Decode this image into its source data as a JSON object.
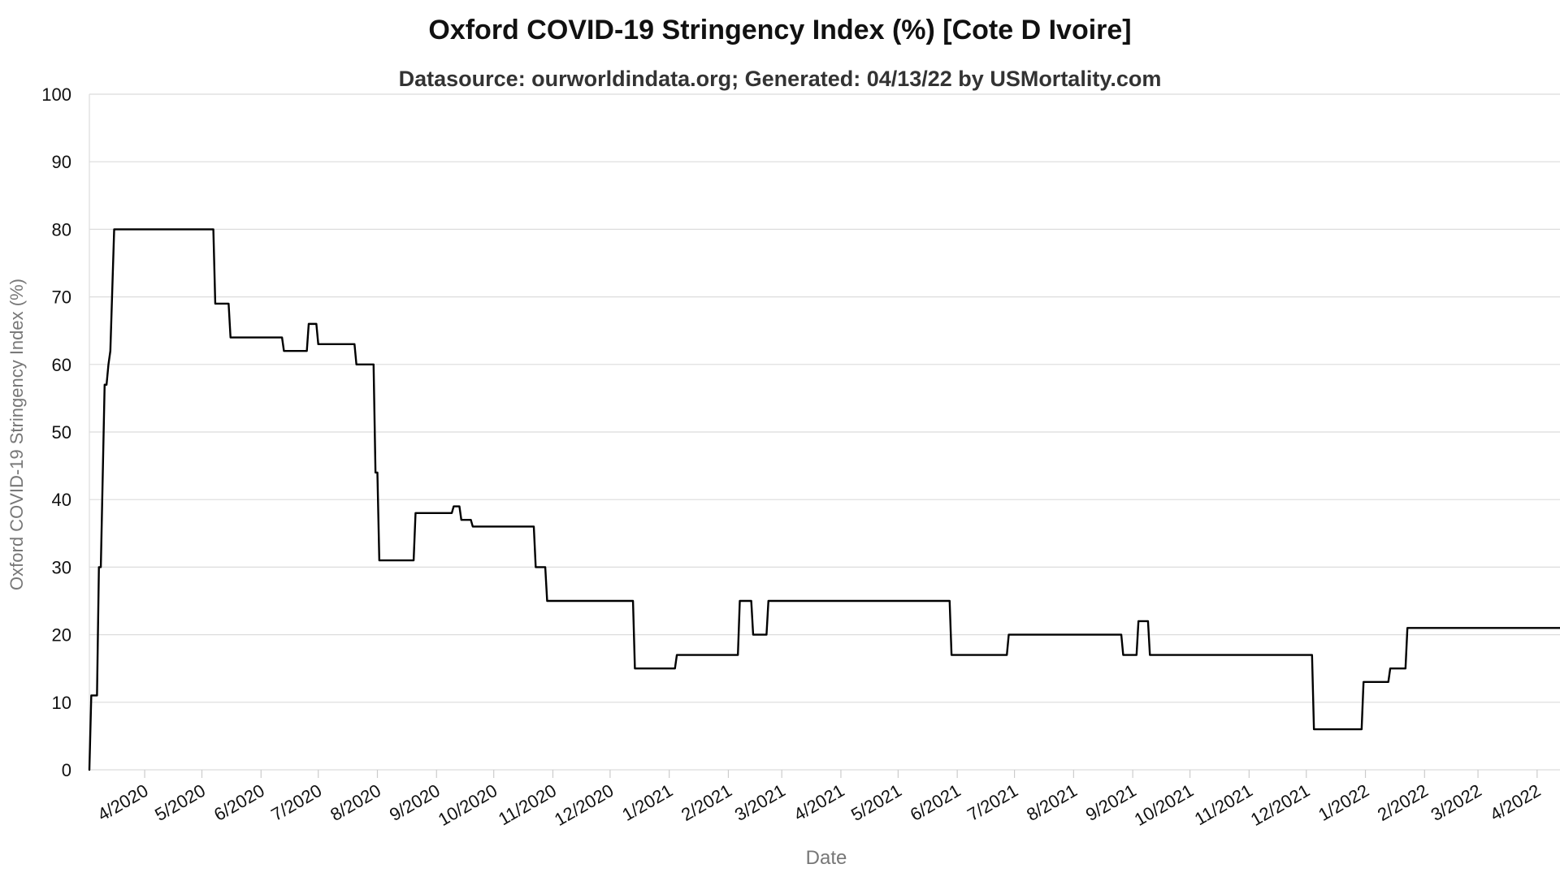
{
  "chart_data": {
    "type": "line",
    "title": "Oxford COVID-19 Stringency Index (%) [Cote D Ivoire]",
    "subtitle": "Datasource: ourworldindata.org; Generated: 04/13/22 by USMortality.com",
    "xlabel": "Date",
    "ylabel": "Oxford COVID-19 Stringency Index (%)",
    "xlim": [
      "2020-03-03",
      "2022-04-13"
    ],
    "ylim": [
      0,
      100
    ],
    "yticks": [
      0,
      10,
      20,
      30,
      40,
      50,
      60,
      70,
      80,
      90,
      100
    ],
    "xticks": [
      {
        "date": "2020-04-01",
        "label": "4/2020"
      },
      {
        "date": "2020-05-01",
        "label": "5/2020"
      },
      {
        "date": "2020-06-01",
        "label": "6/2020"
      },
      {
        "date": "2020-07-01",
        "label": "7/2020"
      },
      {
        "date": "2020-08-01",
        "label": "8/2020"
      },
      {
        "date": "2020-09-01",
        "label": "9/2020"
      },
      {
        "date": "2020-10-01",
        "label": "10/2020"
      },
      {
        "date": "2020-11-01",
        "label": "11/2020"
      },
      {
        "date": "2020-12-01",
        "label": "12/2020"
      },
      {
        "date": "2021-01-01",
        "label": "1/2021"
      },
      {
        "date": "2021-02-01",
        "label": "2/2021"
      },
      {
        "date": "2021-03-01",
        "label": "3/2021"
      },
      {
        "date": "2021-04-01",
        "label": "4/2021"
      },
      {
        "date": "2021-05-01",
        "label": "5/2021"
      },
      {
        "date": "2021-06-01",
        "label": "6/2021"
      },
      {
        "date": "2021-07-01",
        "label": "7/2021"
      },
      {
        "date": "2021-08-01",
        "label": "8/2021"
      },
      {
        "date": "2021-09-01",
        "label": "9/2021"
      },
      {
        "date": "2021-10-01",
        "label": "10/2021"
      },
      {
        "date": "2021-11-01",
        "label": "11/2021"
      },
      {
        "date": "2021-12-01",
        "label": "12/2021"
      },
      {
        "date": "2022-01-01",
        "label": "1/2022"
      },
      {
        "date": "2022-02-01",
        "label": "2/2022"
      },
      {
        "date": "2022-03-01",
        "label": "3/2022"
      },
      {
        "date": "2022-04-01",
        "label": "4/2022"
      }
    ],
    "grid": true,
    "series": [
      {
        "color": "#000000",
        "x": [
          "2020-03-03",
          "2020-03-04",
          "2020-03-07",
          "2020-03-08",
          "2020-03-09",
          "2020-03-11",
          "2020-03-12",
          "2020-03-13",
          "2020-03-14",
          "2020-03-16",
          "2020-03-17",
          "2020-03-18",
          "2020-03-19",
          "2020-03-20",
          "2020-03-21",
          "2020-03-22",
          "2020-03-23",
          "2020-05-07",
          "2020-05-08",
          "2020-05-15",
          "2020-05-16",
          "2020-06-12",
          "2020-06-13",
          "2020-06-25",
          "2020-06-26",
          "2020-06-30",
          "2020-07-01",
          "2020-07-20",
          "2020-07-21",
          "2020-07-30",
          "2020-07-31",
          "2020-08-01",
          "2020-08-02",
          "2020-08-20",
          "2020-08-21",
          "2020-09-09",
          "2020-09-10",
          "2020-09-13",
          "2020-09-14",
          "2020-09-19",
          "2020-09-20",
          "2020-10-22",
          "2020-10-23",
          "2020-10-28",
          "2020-10-29",
          "2020-12-13",
          "2020-12-14",
          "2021-01-04",
          "2021-01-05",
          "2021-02-06",
          "2021-02-07",
          "2021-02-13",
          "2021-02-14",
          "2021-02-21",
          "2021-02-22",
          "2021-05-28",
          "2021-05-29",
          "2021-06-27",
          "2021-06-28",
          "2021-08-26",
          "2021-08-27",
          "2021-09-03",
          "2021-09-04",
          "2021-09-09",
          "2021-09-10",
          "2021-12-04",
          "2021-12-05",
          "2021-12-30",
          "2021-12-31",
          "2022-01-13",
          "2022-01-14",
          "2022-01-22",
          "2022-01-23",
          "2022-04-13"
        ],
        "y": [
          0,
          11,
          11,
          30,
          30,
          57,
          57,
          60,
          62,
          80,
          80,
          80,
          80,
          80,
          80,
          80,
          80,
          80,
          69,
          69,
          64,
          64,
          62,
          62,
          66,
          66,
          63,
          63,
          60,
          60,
          44,
          44,
          31,
          31,
          38,
          38,
          39,
          39,
          37,
          37,
          36,
          36,
          30,
          30,
          25,
          25,
          15,
          15,
          17,
          17,
          25,
          25,
          20,
          20,
          25,
          25,
          17,
          17,
          20,
          20,
          17,
          17,
          22,
          22,
          17,
          17,
          6,
          6,
          13,
          13,
          15,
          15,
          21,
          21
        ]
      }
    ]
  }
}
